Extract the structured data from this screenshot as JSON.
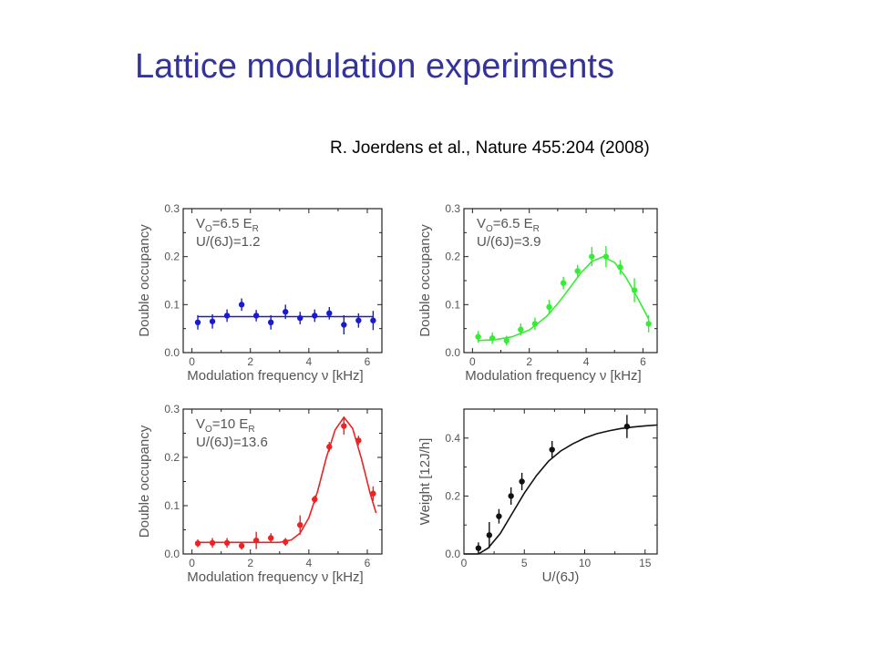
{
  "slide": {
    "title": "Lattice modulation experiments",
    "citation": "R. Joerdens et al., Nature 455:204 (2008)"
  },
  "chart_data": [
    {
      "type": "scatter",
      "color": "#1a1ad6",
      "xlabel": "Modulation frequency ν [kHz]",
      "ylabel": "Double occupancy",
      "xlim": [
        -0.3,
        6.5
      ],
      "ylim": [
        0,
        0.3
      ],
      "xticks": [
        0,
        2,
        4,
        6
      ],
      "xminor": [
        1,
        3,
        5
      ],
      "yticks": [
        0.0,
        0.1,
        0.2,
        0.3
      ],
      "yminor": [
        0.05,
        0.15,
        0.25
      ],
      "ytick_labels": [
        "0.0",
        "0.1",
        "0.2",
        "0.3"
      ],
      "annotation": [
        "V",
        "O",
        "=6.5 E",
        "R"
      ],
      "annotation2": "U/(6J)=1.2",
      "points": [
        {
          "x": 0.2,
          "y": 0.063,
          "err": 0.015
        },
        {
          "x": 0.7,
          "y": 0.065,
          "err": 0.015
        },
        {
          "x": 1.2,
          "y": 0.077,
          "err": 0.013
        },
        {
          "x": 1.7,
          "y": 0.1,
          "err": 0.013
        },
        {
          "x": 2.2,
          "y": 0.077,
          "err": 0.012
        },
        {
          "x": 2.7,
          "y": 0.063,
          "err": 0.015
        },
        {
          "x": 3.2,
          "y": 0.085,
          "err": 0.015
        },
        {
          "x": 3.7,
          "y": 0.072,
          "err": 0.013
        },
        {
          "x": 4.2,
          "y": 0.077,
          "err": 0.013
        },
        {
          "x": 4.7,
          "y": 0.082,
          "err": 0.013
        },
        {
          "x": 5.2,
          "y": 0.058,
          "err": 0.02
        },
        {
          "x": 5.7,
          "y": 0.067,
          "err": 0.015
        },
        {
          "x": 6.2,
          "y": 0.067,
          "err": 0.02
        }
      ],
      "fit": {
        "x": [
          0.2,
          6.2
        ],
        "y": [
          0.075,
          0.075
        ]
      }
    },
    {
      "type": "scatter",
      "color": "#33ee33",
      "xlabel": "Modulation frequency ν [kHz]",
      "ylabel": "Double occupancy",
      "xlim": [
        -0.3,
        6.5
      ],
      "ylim": [
        0,
        0.3
      ],
      "xticks": [
        0,
        2,
        4,
        6
      ],
      "xminor": [
        1,
        3,
        5
      ],
      "yticks": [
        0.0,
        0.1,
        0.2,
        0.3
      ],
      "yminor": [
        0.05,
        0.15,
        0.25
      ],
      "ytick_labels": [
        "0.0",
        "0.1",
        "0.2",
        "0.3"
      ],
      "annotation": [
        "V",
        "O",
        "=6.5 E",
        "R"
      ],
      "annotation2": "U/(6J)=3.9",
      "points": [
        {
          "x": 0.2,
          "y": 0.033,
          "err": 0.012
        },
        {
          "x": 0.7,
          "y": 0.03,
          "err": 0.012
        },
        {
          "x": 1.2,
          "y": 0.025,
          "err": 0.01
        },
        {
          "x": 1.7,
          "y": 0.048,
          "err": 0.013
        },
        {
          "x": 2.2,
          "y": 0.06,
          "err": 0.013
        },
        {
          "x": 2.7,
          "y": 0.095,
          "err": 0.015
        },
        {
          "x": 3.2,
          "y": 0.145,
          "err": 0.013
        },
        {
          "x": 3.7,
          "y": 0.17,
          "err": 0.013
        },
        {
          "x": 4.2,
          "y": 0.2,
          "err": 0.02
        },
        {
          "x": 4.7,
          "y": 0.2,
          "err": 0.022
        },
        {
          "x": 5.2,
          "y": 0.178,
          "err": 0.015
        },
        {
          "x": 5.7,
          "y": 0.13,
          "err": 0.025
        },
        {
          "x": 6.2,
          "y": 0.06,
          "err": 0.018
        }
      ],
      "fit": {
        "x": [
          0.2,
          0.8,
          1.4,
          2.0,
          2.6,
          3.0,
          3.4,
          3.8,
          4.2,
          4.6,
          5.0,
          5.4,
          5.8,
          6.2
        ],
        "y": [
          0.025,
          0.027,
          0.033,
          0.047,
          0.075,
          0.102,
          0.133,
          0.165,
          0.19,
          0.2,
          0.188,
          0.157,
          0.115,
          0.07
        ]
      }
    },
    {
      "type": "scatter",
      "color": "#ee2222",
      "xlabel": "Modulation frequency ν [kHz]",
      "ylabel": "Double occupancy",
      "xlim": [
        -0.3,
        6.5
      ],
      "ylim": [
        0,
        0.3
      ],
      "xticks": [
        0,
        2,
        4,
        6
      ],
      "xminor": [
        1,
        3,
        5
      ],
      "yticks": [
        0.0,
        0.1,
        0.2,
        0.3
      ],
      "yminor": [
        0.05,
        0.15,
        0.25
      ],
      "ytick_labels": [
        "0.0",
        "0.1",
        "0.2",
        "0.3"
      ],
      "annotation": [
        "V",
        "O",
        "=10 E",
        "R"
      ],
      "annotation2": "U/(6J)=13.6",
      "points": [
        {
          "x": 0.2,
          "y": 0.022,
          "err": 0.008
        },
        {
          "x": 0.7,
          "y": 0.023,
          "err": 0.01
        },
        {
          "x": 1.2,
          "y": 0.023,
          "err": 0.01
        },
        {
          "x": 1.7,
          "y": 0.017,
          "err": 0.008
        },
        {
          "x": 2.2,
          "y": 0.028,
          "err": 0.018
        },
        {
          "x": 2.7,
          "y": 0.033,
          "err": 0.01
        },
        {
          "x": 3.2,
          "y": 0.025,
          "err": 0.008
        },
        {
          "x": 3.7,
          "y": 0.06,
          "err": 0.02
        },
        {
          "x": 4.2,
          "y": 0.113,
          "err": 0.008
        },
        {
          "x": 4.7,
          "y": 0.222,
          "err": 0.01
        },
        {
          "x": 5.2,
          "y": 0.265,
          "err": 0.018
        },
        {
          "x": 5.7,
          "y": 0.235,
          "err": 0.01
        },
        {
          "x": 6.2,
          "y": 0.125,
          "err": 0.015
        }
      ],
      "fit": {
        "x": [
          0.2,
          3.0,
          3.4,
          3.7,
          4.0,
          4.3,
          4.6,
          4.9,
          5.2,
          5.5,
          5.8,
          6.1,
          6.3
        ],
        "y": [
          0.024,
          0.024,
          0.029,
          0.043,
          0.075,
          0.13,
          0.2,
          0.257,
          0.283,
          0.26,
          0.197,
          0.125,
          0.085
        ]
      }
    },
    {
      "type": "scatter",
      "color": "#111111",
      "xlabel": "U/(6J)",
      "ylabel": "Weight  [12J/h]",
      "xlim": [
        0,
        16
      ],
      "ylim": [
        0,
        0.5
      ],
      "xticks": [
        0,
        5,
        10,
        15
      ],
      "xminor": [
        2.5,
        7.5,
        12.5
      ],
      "yticks": [
        0.0,
        0.2,
        0.4
      ],
      "yminor": [
        0.1,
        0.3
      ],
      "ytick_labels": [
        "0.0",
        "0.2",
        "0.4"
      ],
      "points": [
        {
          "x": 1.2,
          "y": 0.02,
          "err": 0.02
        },
        {
          "x": 2.1,
          "y": 0.065,
          "err": 0.045
        },
        {
          "x": 2.9,
          "y": 0.13,
          "err": 0.025
        },
        {
          "x": 3.9,
          "y": 0.2,
          "err": 0.03
        },
        {
          "x": 4.8,
          "y": 0.25,
          "err": 0.03
        },
        {
          "x": 7.3,
          "y": 0.36,
          "err": 0.03
        },
        {
          "x": 13.5,
          "y": 0.44,
          "err": 0.04
        }
      ],
      "fit": {
        "x": [
          0,
          1.2,
          2,
          3,
          4,
          5,
          6,
          7,
          8,
          9,
          10,
          11,
          12,
          13,
          14,
          15,
          16
        ],
        "y": [
          0,
          0,
          0.02,
          0.07,
          0.14,
          0.21,
          0.27,
          0.32,
          0.355,
          0.38,
          0.4,
          0.415,
          0.425,
          0.433,
          0.438,
          0.442,
          0.445
        ]
      }
    }
  ]
}
